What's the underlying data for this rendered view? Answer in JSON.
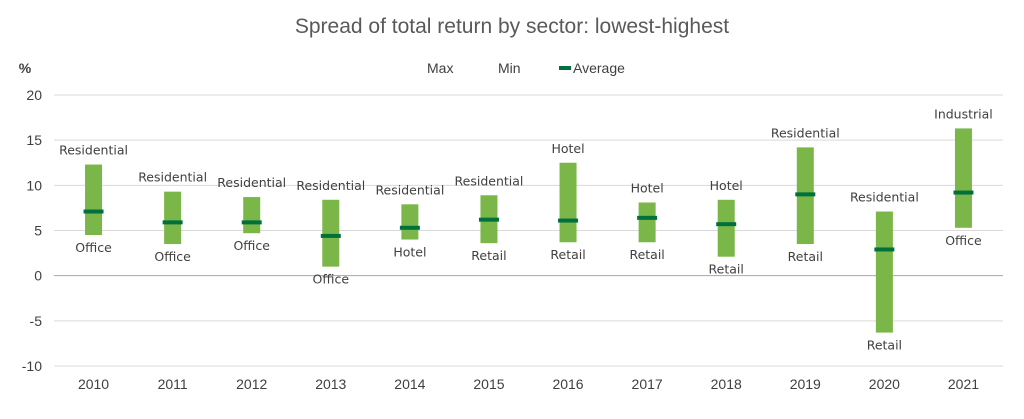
{
  "chart_data": {
    "type": "bar",
    "title": "Spread of total return by sector: lowest-highest",
    "ylabel": "%",
    "ylim": [
      -10,
      20
    ],
    "yticks": [
      "20",
      "15",
      "10",
      "5",
      "0",
      "-5",
      "-10"
    ],
    "grid": true,
    "legend_position": "top",
    "legend": [
      {
        "name": "Max",
        "swatch": "none"
      },
      {
        "name": "Min",
        "swatch": "none"
      },
      {
        "name": "Average",
        "swatch": "line"
      }
    ],
    "categories": [
      "2010",
      "2011",
      "2012",
      "2013",
      "2014",
      "2015",
      "2016",
      "2017",
      "2018",
      "2019",
      "2020",
      "2021"
    ],
    "series": [
      {
        "name": "Max",
        "values": [
          12.3,
          9.3,
          8.7,
          8.4,
          7.9,
          8.9,
          12.5,
          8.1,
          8.4,
          14.2,
          7.1,
          16.3
        ]
      },
      {
        "name": "Min",
        "values": [
          4.5,
          3.5,
          4.7,
          1.0,
          4.0,
          3.6,
          3.7,
          3.7,
          2.1,
          3.5,
          -6.3,
          5.3
        ]
      },
      {
        "name": "Average",
        "values": [
          7.1,
          5.9,
          5.9,
          4.4,
          5.3,
          6.2,
          6.1,
          6.4,
          5.7,
          9.0,
          2.9,
          9.2
        ]
      }
    ],
    "max_labels": [
      "Residential",
      "Residential",
      "Residential",
      "Residential",
      "Residential",
      "Residential",
      "Hotel",
      "Hotel",
      "Hotel",
      "Residential",
      "Residential",
      "Industrial"
    ],
    "min_labels": [
      "Office",
      "Office",
      "Office",
      "Office",
      "Hotel",
      "Retail",
      "Retail",
      "Retail",
      "Retail",
      "Retail",
      "Retail",
      "Office"
    ],
    "colors": {
      "range_bar": "#7ab648",
      "average": "#00703c",
      "grid": "#d9d9d9",
      "axis": "#a6a6a6",
      "text": "#404040",
      "title": "#595959"
    }
  }
}
